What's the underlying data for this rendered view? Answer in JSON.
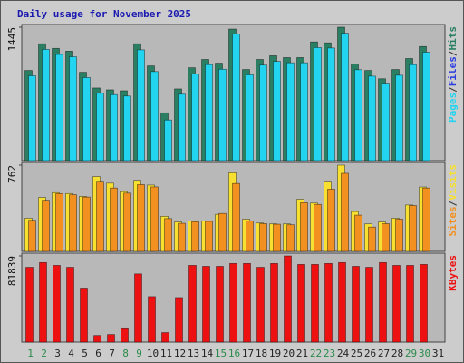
{
  "title": "Daily usage for November 2025",
  "chart_data": [
    {
      "type": "bar",
      "ylim": [
        0,
        1445
      ],
      "yticks": [
        1445
      ],
      "separator": "/",
      "series": [
        {
          "name": "Pages",
          "color": "#22d4f0",
          "values": [
            920,
            1205,
            1150,
            1125,
            900,
            730,
            715,
            700,
            1200,
            965,
            440,
            720,
            940,
            1040,
            990,
            1370,
            930,
            1035,
            1075,
            1060,
            1060,
            1225,
            1220,
            1380,
            985,
            915,
            830,
            925,
            1040,
            1175,
            0
          ]
        },
        {
          "name": "Files",
          "color": "#2a3ce0",
          "values": [
            null,
            null,
            null,
            null,
            null,
            null,
            null,
            null,
            null,
            null,
            null,
            null,
            null,
            null,
            null,
            null,
            null,
            null,
            null,
            null,
            null,
            null,
            null,
            null,
            null,
            null,
            null,
            null,
            null,
            null,
            null
          ]
        },
        {
          "name": "Hits",
          "color": "#2a7f62",
          "values": [
            977,
            1266,
            1216,
            1186,
            957,
            787,
            767,
            757,
            1266,
            1026,
            518,
            777,
            1006,
            1096,
            1056,
            1425,
            987,
            1096,
            1136,
            1116,
            1116,
            1286,
            1276,
            1445,
            1046,
            977,
            887,
            987,
            1106,
            1236,
            0
          ]
        }
      ]
    },
    {
      "type": "bar",
      "ylim": [
        0,
        762
      ],
      "yticks": [
        762
      ],
      "separator": "/",
      "series": [
        {
          "name": "Sites",
          "color": "#f29020",
          "values": [
            275,
            452,
            510,
            500,
            480,
            620,
            560,
            515,
            590,
            570,
            290,
            248,
            262,
            265,
            335,
            600,
            270,
            245,
            240,
            235,
            430,
            415,
            550,
            690,
            320,
            215,
            245,
            285,
            405,
            560,
            0
          ]
        },
        {
          "name": "Visits",
          "color": "#f8e030",
          "values": [
            293,
            477,
            519,
            511,
            486,
            661,
            603,
            528,
            628,
            586,
            310,
            260,
            268,
            268,
            327,
            695,
            285,
            251,
            243,
            243,
            461,
            427,
            620,
            762,
            352,
            243,
            260,
            293,
            410,
            569,
            0
          ]
        }
      ]
    },
    {
      "type": "bar",
      "ylim": [
        0,
        81839
      ],
      "yticks": [
        81839
      ],
      "series": [
        {
          "name": "KBytes",
          "color": "#ee1111",
          "values": [
            71047,
            75543,
            72845,
            71047,
            51262,
            6295,
            7195,
            13490,
            64752,
            43168,
            8993,
            42268,
            72845,
            71946,
            71946,
            74644,
            74644,
            71047,
            74644,
            81839,
            73745,
            73745,
            74644,
            75543,
            71946,
            71047,
            75543,
            72845,
            72845,
            73745,
            0
          ]
        }
      ],
      "categories": [
        "1",
        "2",
        "3",
        "4",
        "5",
        "6",
        "7",
        "8",
        "9",
        "10",
        "11",
        "12",
        "13",
        "14",
        "15",
        "16",
        "17",
        "18",
        "19",
        "20",
        "21",
        "22",
        "23",
        "24",
        "25",
        "26",
        "27",
        "28",
        "29",
        "30",
        "31"
      ],
      "category_colors": [
        "#2a8a4a",
        "#2a8a4a",
        "#222",
        "#222",
        "#222",
        "#222",
        "#222",
        "#2a8a4a",
        "#2a8a4a",
        "#222",
        "#222",
        "#222",
        "#222",
        "#222",
        "#2a8a4a",
        "#2a8a4a",
        "#222",
        "#222",
        "#222",
        "#222",
        "#222",
        "#2a8a4a",
        "#2a8a4a",
        "#222",
        "#222",
        "#222",
        "#222",
        "#222",
        "#2a8a4a",
        "#2a8a4a",
        "#222"
      ]
    }
  ]
}
